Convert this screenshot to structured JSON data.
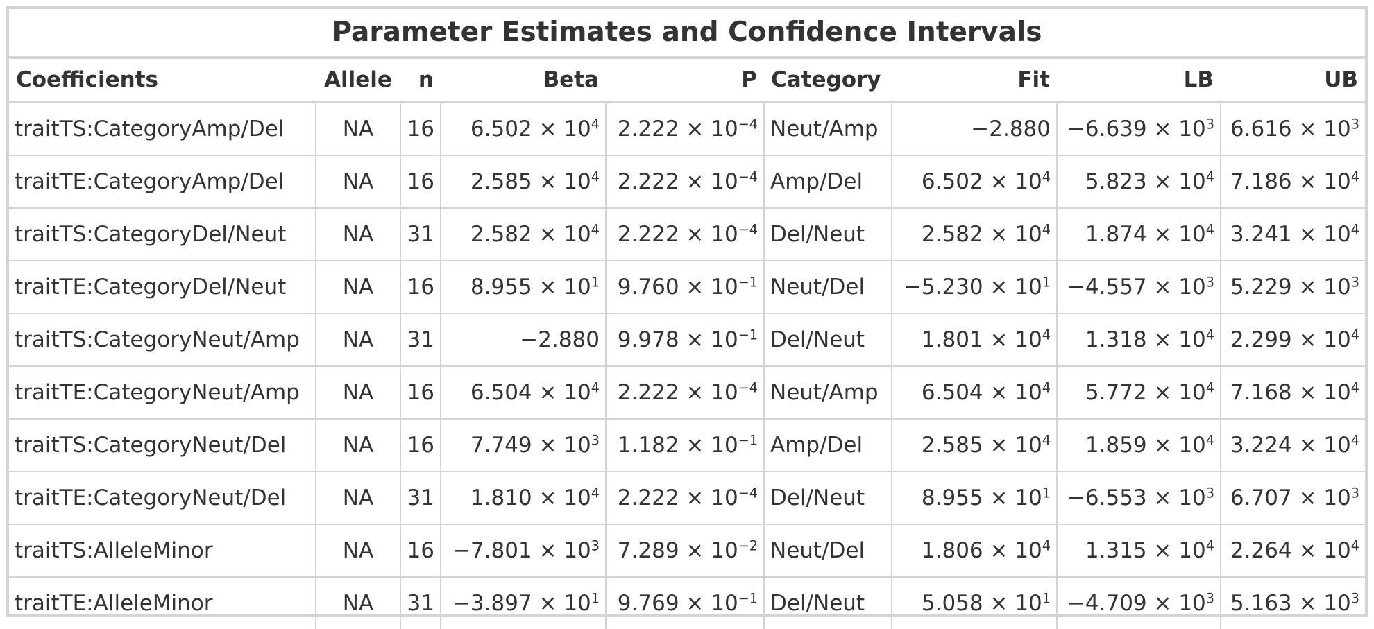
{
  "title": "Parameter Estimates and Confidence Intervals",
  "headers": [
    "Coefficients",
    "Allele",
    "n",
    "Beta",
    "P",
    "Category",
    "Fit",
    "LB",
    "UB"
  ],
  "rows": [
    {
      "coef": "traitTS:CategoryAmp/Del",
      "allele": "NA",
      "n": "16",
      "beta": "6.502 × 10^4",
      "p": "2.222 × 10^−4",
      "category": "Neut/Amp",
      "fit": "−2.880",
      "lb": "−6.639 × 10^3",
      "ub": "6.616 × 10^3"
    },
    {
      "coef": "traitTE:CategoryAmp/Del",
      "allele": "NA",
      "n": "16",
      "beta": "2.585 × 10^4",
      "p": "2.222 × 10^−4",
      "category": "Amp/Del",
      "fit": "6.502 × 10^4",
      "lb": "5.823 × 10^4",
      "ub": "7.186 × 10^4"
    },
    {
      "coef": "traitTS:CategoryDel/Neut",
      "allele": "NA",
      "n": "31",
      "beta": "2.582 × 10^4",
      "p": "2.222 × 10^−4",
      "category": "Del/Neut",
      "fit": "2.582 × 10^4",
      "lb": "1.874 × 10^4",
      "ub": "3.241 × 10^4"
    },
    {
      "coef": "traitTE:CategoryDel/Neut",
      "allele": "NA",
      "n": "16",
      "beta": "8.955 × 10^1",
      "p": "9.760 × 10^−1",
      "category": "Neut/Del",
      "fit": "−5.230 × 10^1",
      "lb": "−4.557 × 10^3",
      "ub": "5.229 × 10^3"
    },
    {
      "coef": "traitTS:CategoryNeut/Amp",
      "allele": "NA",
      "n": "31",
      "beta": "−2.880",
      "p": "9.978 × 10^−1",
      "category": "Del/Neut",
      "fit": "1.801 × 10^4",
      "lb": "1.318 × 10^4",
      "ub": "2.299 × 10^4"
    },
    {
      "coef": "traitTE:CategoryNeut/Amp",
      "allele": "NA",
      "n": "16",
      "beta": "6.504 × 10^4",
      "p": "2.222 × 10^−4",
      "category": "Neut/Amp",
      "fit": "6.504 × 10^4",
      "lb": "5.772 × 10^4",
      "ub": "7.168 × 10^4"
    },
    {
      "coef": "traitTS:CategoryNeut/Del",
      "allele": "NA",
      "n": "16",
      "beta": "7.749 × 10^3",
      "p": "1.182 × 10^−1",
      "category": "Amp/Del",
      "fit": "2.585 × 10^4",
      "lb": "1.859 × 10^4",
      "ub": "3.224 × 10^4"
    },
    {
      "coef": "traitTE:CategoryNeut/Del",
      "allele": "NA",
      "n": "31",
      "beta": "1.810 × 10^4",
      "p": "2.222 × 10^−4",
      "category": "Del/Neut",
      "fit": "8.955 × 10^1",
      "lb": "−6.553 × 10^3",
      "ub": "6.707 × 10^3"
    },
    {
      "coef": "traitTS:AlleleMinor",
      "allele": "NA",
      "n": "16",
      "beta": "−7.801 × 10^3",
      "p": "7.289 × 10^−2",
      "category": "Neut/Del",
      "fit": "1.806 × 10^4",
      "lb": "1.315 × 10^4",
      "ub": "2.264 × 10^4"
    },
    {
      "coef": "traitTE:AlleleMinor",
      "allele": "NA",
      "n": "31",
      "beta": "−3.897 × 10^1",
      "p": "9.769 × 10^−1",
      "category": "Del/Neut",
      "fit": "5.058 × 10^1",
      "lb": "−4.709 × 10^3",
      "ub": "5.163 × 10^3"
    }
  ]
}
